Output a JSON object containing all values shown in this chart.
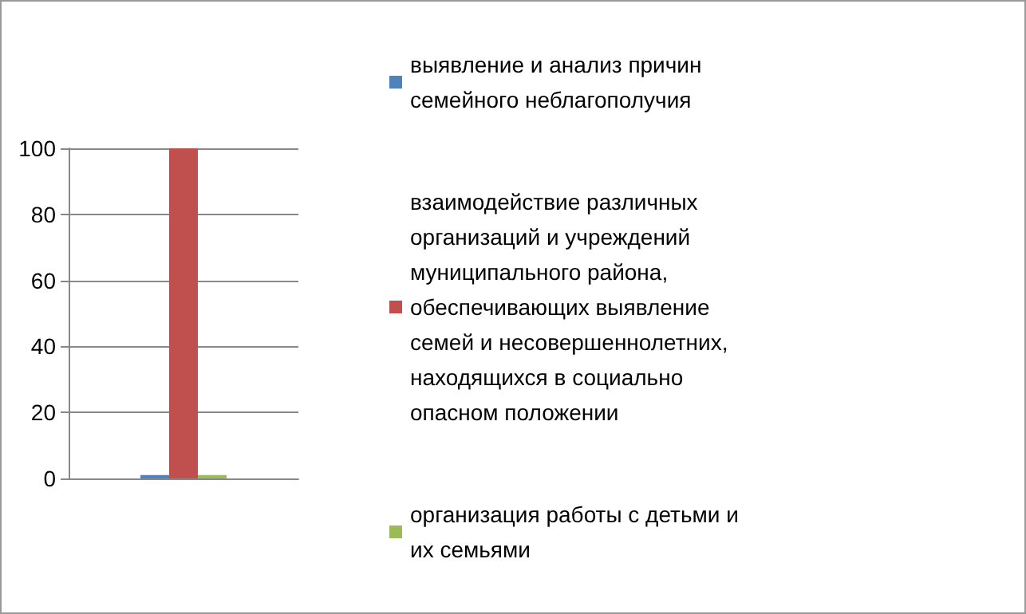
{
  "chart_data": {
    "type": "bar",
    "categories": [
      null
    ],
    "series": [
      {
        "name": "выявление и анализ причин семейного неблагополучия",
        "color": "#4f81bd",
        "values": [
          1
        ]
      },
      {
        "name": "взаимодействие различных организаций и учреждений муниципального района, обеспечивающих выявление семей и несовершеннолетних, находящихся в социально опасном положении",
        "color": "#c0504d",
        "values": [
          100
        ]
      },
      {
        "name": "организация работы с детьми и их семьями",
        "color": "#9bbb59",
        "values": [
          1
        ]
      }
    ],
    "ylim": [
      0,
      100
    ],
    "yticks": [
      0,
      20,
      40,
      60,
      80,
      100
    ],
    "grid": "y",
    "legend": "right"
  }
}
